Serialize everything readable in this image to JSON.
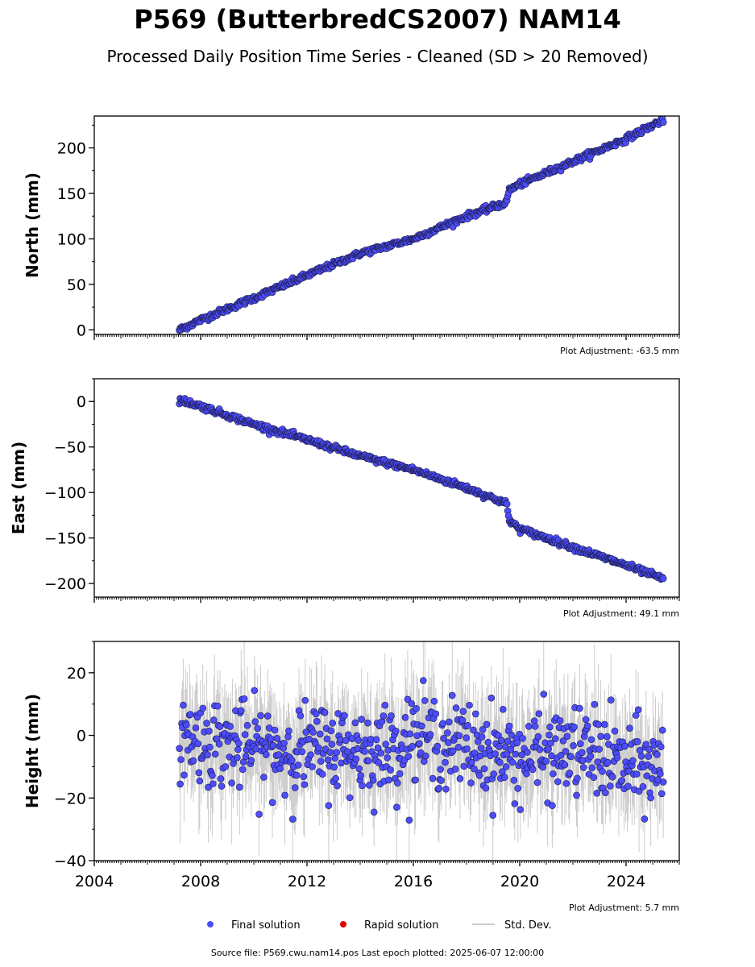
{
  "title": "P569 (ButterbredCS2007) NAM14",
  "subtitle": "Processed Daily Position Time Series - Cleaned (SD > 20 Removed)",
  "source_text": "Source file: P569.cwu.nam14.pos  Last epoch plotted: 2025-06-07 12:00:00",
  "colors": {
    "final": "#4d4dff",
    "rapid": "#e00000",
    "std": "#bbbbbb"
  },
  "legend": [
    {
      "label": "Final solution",
      "marker": "dot",
      "color": "#4d4dff"
    },
    {
      "label": "Rapid solution",
      "marker": "dot",
      "color": "#e00000"
    },
    {
      "label": "Std. Dev.",
      "marker": "line",
      "color": "#bbbbbb"
    }
  ],
  "chart_data": [
    {
      "type": "scatter",
      "ylabel": "North (mm)",
      "adjustment": "Plot Adjustment: -63.5 mm",
      "xlim": [
        2004,
        2026
      ],
      "ylim": [
        -5,
        235
      ],
      "yticks": [
        0,
        50,
        100,
        150,
        200
      ],
      "xticks": [
        2004,
        2008,
        2012,
        2016,
        2020,
        2024
      ],
      "show_x_tick_labels": false,
      "series": [
        {
          "name": "Final solution",
          "x": [
            2007.2,
            2008,
            2010,
            2012,
            2014,
            2016,
            2018,
            2019.5,
            2019.6,
            2020,
            2022,
            2024,
            2025.4
          ],
          "y": [
            0,
            11,
            35,
            60,
            84,
            100,
            125,
            140,
            154,
            160,
            185,
            210,
            231
          ]
        }
      ]
    },
    {
      "type": "scatter",
      "ylabel": "East (mm)",
      "adjustment": "Plot Adjustment: 49.1 mm",
      "xlim": [
        2004,
        2026
      ],
      "ylim": [
        -215,
        25
      ],
      "yticks": [
        0,
        -50,
        -100,
        -150,
        -200
      ],
      "xticks": [
        2004,
        2008,
        2012,
        2016,
        2020,
        2024
      ],
      "show_x_tick_labels": false,
      "series": [
        {
          "name": "Final solution",
          "x": [
            2007.2,
            2008,
            2010,
            2012,
            2014,
            2016,
            2018,
            2019.5,
            2019.6,
            2020,
            2022,
            2024,
            2025.4
          ],
          "y": [
            2,
            -5,
            -25,
            -42,
            -60,
            -75,
            -95,
            -112,
            -130,
            -140,
            -160,
            -180,
            -195
          ]
        }
      ]
    },
    {
      "type": "scatter",
      "ylabel": "Height (mm)",
      "adjustment": "Plot Adjustment: 5.7 mm",
      "xlim": [
        2004,
        2026
      ],
      "ylim": [
        -40,
        30
      ],
      "yticks": [
        20,
        0,
        -20,
        -40
      ],
      "xticks": [
        2004,
        2008,
        2012,
        2016,
        2020,
        2024
      ],
      "xtick_labels": [
        "2004",
        "2008",
        "2012",
        "2016",
        "2020",
        "2024"
      ],
      "show_x_tick_labels": true,
      "series": [
        {
          "name": "Final solution",
          "x": [
            2007.2,
            2009,
            2011,
            2013,
            2015,
            2016,
            2017,
            2019,
            2020,
            2022,
            2023,
            2024,
            2025.4
          ],
          "y": [
            0,
            -3,
            -5,
            -4,
            -5,
            0,
            -2,
            -5,
            -7,
            -5,
            -6,
            -10,
            -10
          ],
          "scatter_sd": 7
        }
      ]
    }
  ]
}
